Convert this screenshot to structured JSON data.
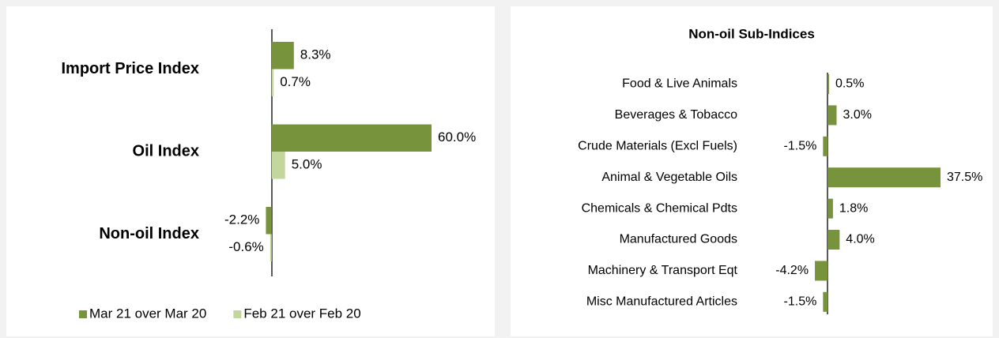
{
  "chart_data": [
    {
      "type": "bar",
      "orientation": "horizontal",
      "categories": [
        "Import Price Index",
        "Oil Index",
        "Non-oil Index"
      ],
      "series": [
        {
          "name": "Mar 21 over Mar 20",
          "color": "#77933c",
          "values": [
            8.3,
            60.0,
            -2.2
          ],
          "value_labels": [
            "8.3%",
            "60.0%",
            "-2.2%"
          ]
        },
        {
          "name": "Feb 21 over Feb 20",
          "color": "#c3d69b",
          "values": [
            0.7,
            5.0,
            -0.6
          ],
          "value_labels": [
            "0.7%",
            "5.0%",
            "-0.6%"
          ]
        }
      ],
      "xlim": [
        -5,
        60
      ],
      "legend": "bottom"
    },
    {
      "type": "bar",
      "orientation": "horizontal",
      "title": "Non-oil Sub-Indices",
      "categories": [
        "Food & Live Animals",
        "Beverages & Tobacco",
        "Crude Materials (Excl Fuels)",
        "Animal & Vegetable Oils",
        "Chemicals & Chemical Pdts",
        "Manufactured Goods",
        "Machinery & Transport Eqt",
        "Misc Manufactured Articles"
      ],
      "values": [
        0.5,
        3.0,
        -1.5,
        37.5,
        1.8,
        4.0,
        -4.2,
        -1.5
      ],
      "value_labels": [
        "0.5%",
        "3.0%",
        "-1.5%",
        "37.5%",
        "1.8%",
        "4.0%",
        "-4.2%",
        "-1.5%"
      ],
      "color": "#77933c",
      "xlim": [
        -5,
        37.5
      ]
    }
  ]
}
